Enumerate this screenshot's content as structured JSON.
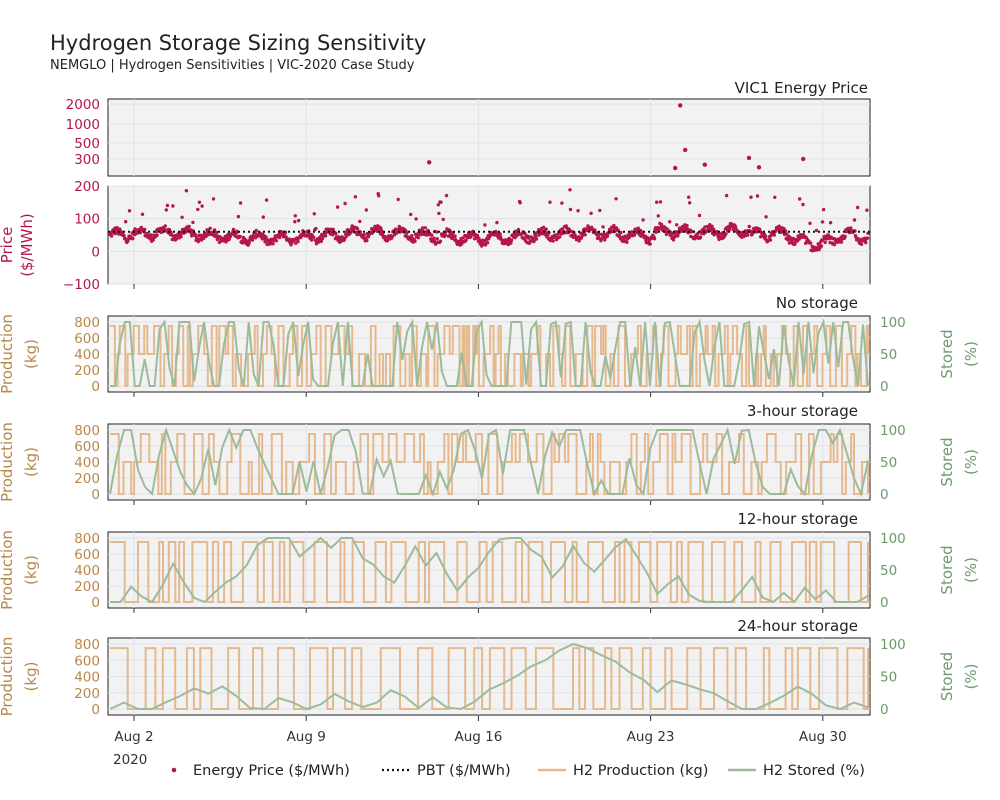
{
  "title": "Hydrogen Storage Sizing Sensitivity",
  "subtitle": "NEMGLO | Hydrogen Sensitivities | VIC-2020 Case Study",
  "colors": {
    "price": "#b5174a",
    "production": "#e5b98e",
    "production_text": "#b8874a",
    "stored": "#9dbb9b",
    "stored_text": "#6c9a69",
    "pbt": "#111111",
    "panel_bg": "#f2f2f2",
    "grid": "#dde3ee"
  },
  "x_axis": {
    "ticks": [
      "Aug 2",
      "Aug 9",
      "Aug 16",
      "Aug 23",
      "Aug 30"
    ],
    "year_label": "2020"
  },
  "legend": [
    {
      "label": "Energy Price ($/MWh)",
      "kind": "marker",
      "color": "#b5174a"
    },
    {
      "label": "PBT ($/MWh)",
      "kind": "dotted",
      "color": "#111111"
    },
    {
      "label": "H2 Production (kg)",
      "kind": "line",
      "color": "#e5b98e"
    },
    {
      "label": "H2 Stored (%)",
      "kind": "line",
      "color": "#9dbb9b"
    }
  ],
  "chart_data": [
    {
      "type": "scatter",
      "title": "VIC1 Energy Price",
      "ylabel": "Price ($/MWh)",
      "y_ticks_upper": [
        "2000",
        "1000",
        "500",
        "300"
      ],
      "y_ticks_lower": [
        "200",
        "100",
        "0",
        "−100"
      ],
      "ylim_lower": [
        -100,
        200
      ],
      "pbt": 60,
      "x_range_days": [
        "2020-07-31",
        "2020-09-01"
      ],
      "price_summary": {
        "typical_min": 20,
        "typical_max": 90,
        "min": -45,
        "max": 1900
      },
      "high_price_points": [
        {
          "date": "2020-08-14",
          "value": 270
        },
        {
          "date": "2020-08-24",
          "value": 1900
        },
        {
          "date": "2020-08-24",
          "value": 400
        },
        {
          "date": "2020-08-24",
          "value": 225
        },
        {
          "date": "2020-08-25",
          "value": 250
        },
        {
          "date": "2020-08-27",
          "value": 230
        },
        {
          "date": "2020-08-27",
          "value": 310
        },
        {
          "date": "2020-08-29",
          "value": 300
        }
      ]
    },
    {
      "type": "line",
      "title": "No storage",
      "ylabel_left": "Production (kg)",
      "ylabel_right": "Stored (%)",
      "y_ticks_left": [
        "800",
        "600",
        "400",
        "200",
        "0"
      ],
      "y_ticks_right": [
        "100",
        "50",
        "0"
      ],
      "ylim_left": [
        0,
        800
      ],
      "ylim_right": [
        0,
        100
      ],
      "production_levels": [
        0,
        400,
        750
      ],
      "stored_range": [
        0,
        100
      ]
    },
    {
      "type": "line",
      "title": "3-hour storage",
      "ylabel_left": "Production (kg)",
      "ylabel_right": "Stored (%)",
      "y_ticks_left": [
        "800",
        "600",
        "400",
        "200",
        "0"
      ],
      "y_ticks_right": [
        "100",
        "50",
        "0"
      ],
      "ylim_left": [
        0,
        800
      ],
      "ylim_right": [
        0,
        100
      ],
      "production_levels": [
        0,
        400,
        750
      ],
      "stored_range": [
        0,
        100
      ]
    },
    {
      "type": "line",
      "title": "12-hour storage",
      "ylabel_left": "Production (kg)",
      "ylabel_right": "Stored (%)",
      "y_ticks_left": [
        "800",
        "600",
        "400",
        "200",
        "0"
      ],
      "y_ticks_right": [
        "100",
        "50",
        "0"
      ],
      "ylim_left": [
        0,
        800
      ],
      "ylim_right": [
        0,
        100
      ],
      "production_levels": [
        0,
        750
      ],
      "stored_range": [
        0,
        100
      ]
    },
    {
      "type": "line",
      "title": "24-hour storage",
      "ylabel_left": "Production (kg)",
      "ylabel_right": "Stored (%)",
      "y_ticks_left": [
        "800",
        "600",
        "400",
        "200",
        "0"
      ],
      "y_ticks_right": [
        "100",
        "50",
        "0"
      ],
      "ylim_left": [
        0,
        800
      ],
      "ylim_right": [
        0,
        100
      ],
      "production_levels": [
        0,
        750
      ],
      "stored_range": [
        0,
        100
      ]
    }
  ]
}
